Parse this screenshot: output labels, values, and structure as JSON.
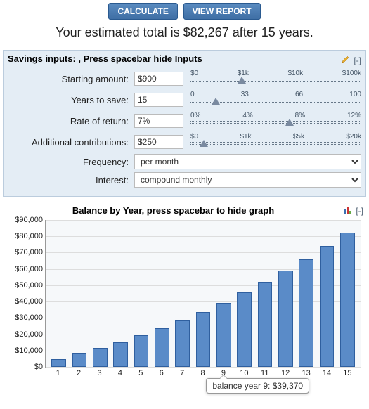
{
  "buttons": {
    "calculate": "CALCULATE",
    "view_report": "VIEW REPORT"
  },
  "estimate_text": "Your estimated total is $82,267 after 15 years.",
  "panel": {
    "header": "Savings inputs: , Press spacebar hide Inputs",
    "collapse": "[-]",
    "rows": {
      "starting_amount": {
        "label": "Starting amount:",
        "value": "$900",
        "slider": {
          "ticks": [
            "$0",
            "$1k",
            "$10k",
            "$100k"
          ],
          "pos_pct": 30
        }
      },
      "years": {
        "label": "Years to save:",
        "value": "15",
        "slider": {
          "ticks": [
            "0",
            "33",
            "66",
            "100"
          ],
          "pos_pct": 15
        }
      },
      "rate": {
        "label": "Rate of return:",
        "value": "7%",
        "slider": {
          "ticks": [
            "0%",
            "4%",
            "8%",
            "12%"
          ],
          "pos_pct": 58
        }
      },
      "contrib": {
        "label": "Additional contributions:",
        "value": "$250",
        "slider": {
          "ticks": [
            "$0",
            "$1k",
            "$5k",
            "$20k"
          ],
          "pos_pct": 8
        }
      },
      "frequency": {
        "label": "Frequency:",
        "value": "per month"
      },
      "interest": {
        "label": "Interest:",
        "value": "compound monthly"
      }
    }
  },
  "chart": {
    "title": "Balance by Year, press spacebar to hide graph",
    "collapse": "[-]",
    "y_max": 90000,
    "y_ticks": [
      0,
      10000,
      20000,
      30000,
      40000,
      50000,
      60000,
      70000,
      80000,
      90000
    ],
    "y_tick_labels": [
      "$0",
      "$10,000",
      "$20,000",
      "$30,000",
      "$40,000",
      "$50,000",
      "$60,000",
      "$70,000",
      "$80,000",
      "$90,000"
    ],
    "x_labels": [
      "1",
      "2",
      "3",
      "4",
      "5",
      "6",
      "7",
      "8",
      "9",
      "10",
      "11",
      "12",
      "13",
      "14",
      "15"
    ],
    "values": [
      4700,
      8000,
      11500,
      15200,
      19200,
      23600,
      28300,
      33500,
      39370,
      45600,
      52000,
      59000,
      66000,
      74000,
      82267
    ],
    "bar_color": "#5a8bc8",
    "bg_color": "#f6f8fa",
    "grid_color": "#dddddd",
    "tooltip": {
      "text": "balance year 9: $39,370",
      "bar_index": 8
    }
  }
}
